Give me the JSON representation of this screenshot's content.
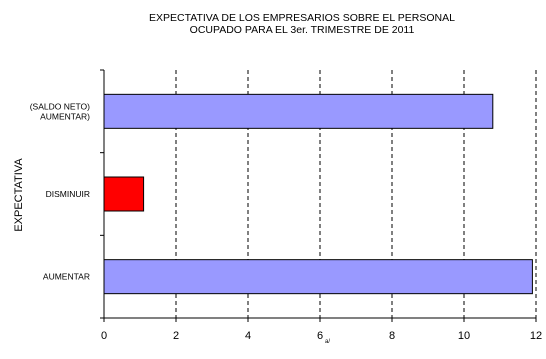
{
  "chart_data": {
    "type": "bar",
    "orientation": "horizontal",
    "title": [
      "EXPECTATIVA DE LOS EMPRESARIOS SOBRE EL PERSONAL",
      "OCUPADO PARA EL 3er.  TRIMESTRE  DE 2011"
    ],
    "ylabel": "EXPECTATIVA",
    "xlabel": "",
    "categories": [
      {
        "label": [
          "(SALDO NETO)",
          "AUMENTAR)"
        ],
        "value": 10.8,
        "color": "#9999ff"
      },
      {
        "label": [
          "DISMINUIR"
        ],
        "value": 1.1,
        "color": "#ff0000"
      },
      {
        "label": [
          "AUMENTAR"
        ],
        "value": 11.9,
        "color": "#9999ff"
      }
    ],
    "xlim": [
      0,
      12
    ],
    "xticks": [
      "0",
      "2",
      "4",
      "6",
      "8",
      "10",
      "12"
    ],
    "tick_superscript": {
      "after": "6",
      "text": "a/"
    },
    "grid": "vertical dashed",
    "legend": "none"
  }
}
